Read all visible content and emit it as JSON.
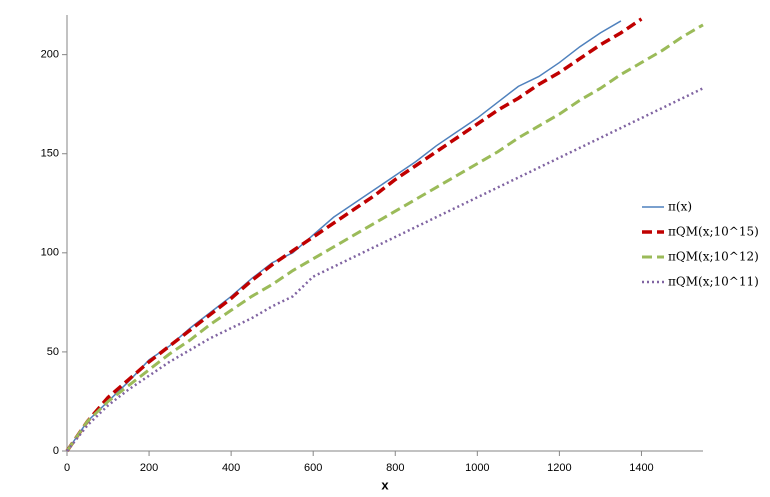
{
  "chart_data": {
    "type": "line",
    "x_label": "x",
    "x": [
      0,
      50,
      100,
      150,
      200,
      250,
      300,
      350,
      400,
      450,
      500,
      550,
      600,
      650,
      700,
      750,
      800,
      850,
      900,
      950,
      1000,
      1050,
      1100,
      1150,
      1200,
      1250,
      1300,
      1350,
      1400,
      1450,
      1500,
      1550
    ],
    "series": [
      {
        "name": "π(x)",
        "color": "#4f81bd",
        "style": "solid",
        "width": 1.5,
        "values": [
          0,
          15,
          25,
          35,
          46,
          53,
          62,
          70,
          78,
          87,
          95,
          100,
          109,
          118,
          125,
          132,
          139,
          146,
          154,
          161,
          168,
          176,
          184,
          189,
          196,
          204,
          211,
          217,
          null,
          null,
          null,
          null
        ]
      },
      {
        "name": "πQM(x;10^15)",
        "color": "#c00000",
        "style": "dashed",
        "width": 3.5,
        "values": [
          0,
          15,
          27,
          36,
          45,
          53,
          61,
          69,
          77,
          86,
          94,
          101,
          108,
          115,
          122,
          129,
          137,
          144,
          151,
          158,
          165,
          172,
          178,
          185,
          191,
          198,
          205,
          211,
          218,
          null,
          null,
          null
        ]
      },
      {
        "name": "πQM(x;10^12)",
        "color": "#9bbb59",
        "style": "dashed",
        "width": 3,
        "values": [
          0,
          15,
          25,
          33,
          41,
          49,
          56,
          64,
          71,
          78,
          84,
          91,
          97,
          103,
          109,
          115,
          121,
          127,
          133,
          139,
          145,
          151,
          158,
          164,
          170,
          177,
          183,
          190,
          196,
          202,
          209,
          215
        ]
      },
      {
        "name": "πQM(x;10^11)",
        "color": "#8064a2",
        "style": "dotted",
        "width": 2.5,
        "values": [
          0,
          13,
          23,
          31,
          38,
          45,
          51,
          57,
          62,
          67,
          73,
          78,
          88,
          93,
          98,
          103,
          108,
          113,
          118,
          123,
          128,
          133,
          138,
          143,
          148,
          153,
          158,
          163,
          168,
          173,
          178,
          183
        ]
      }
    ],
    "xlim": [
      0,
      1550
    ],
    "ylim": [
      0,
      220
    ],
    "xticks": [
      0,
      200,
      400,
      600,
      800,
      1000,
      1200,
      1400
    ],
    "yticks": [
      0,
      50,
      100,
      150,
      200
    ],
    "grid": false,
    "legend": "right"
  }
}
